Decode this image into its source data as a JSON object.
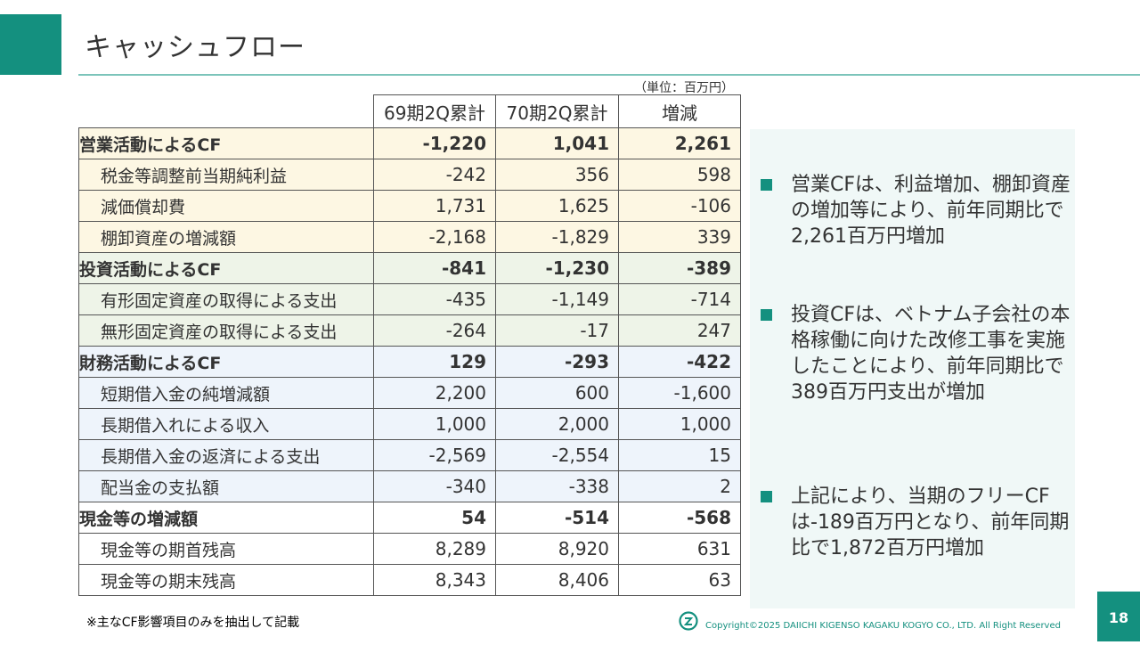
{
  "title": "キャッシュフロー",
  "unit_note": "（単位：百万円）",
  "table": {
    "headers": [
      "69期2Q累計",
      "70期2Q累計",
      "増減"
    ],
    "rows": [
      {
        "label": "営業活動によるCF",
        "kind": "section",
        "group": "op",
        "values": [
          "-1,220",
          "1,041",
          "2,261"
        ]
      },
      {
        "label": "税金等調整前当期純利益",
        "kind": "item",
        "group": "op",
        "values": [
          "-242",
          "356",
          "598"
        ]
      },
      {
        "label": "減価償却費",
        "kind": "item",
        "group": "op",
        "values": [
          "1,731",
          "1,625",
          "-106"
        ]
      },
      {
        "label": "棚卸資産の増減額",
        "kind": "item",
        "group": "op",
        "values": [
          "-2,168",
          "-1,829",
          "339"
        ]
      },
      {
        "label": "投資活動によるCF",
        "kind": "section",
        "group": "inv",
        "values": [
          "-841",
          "-1,230",
          "-389"
        ]
      },
      {
        "label": "有形固定資産の取得による支出",
        "kind": "item",
        "group": "inv",
        "values": [
          "-435",
          "-1,149",
          "-714"
        ]
      },
      {
        "label": "無形固定資産の取得による支出",
        "kind": "item",
        "group": "inv",
        "values": [
          "-264",
          "-17",
          "247"
        ]
      },
      {
        "label": "財務活動によるCF",
        "kind": "section",
        "group": "fin",
        "values": [
          "129",
          "-293",
          "-422"
        ]
      },
      {
        "label": "短期借入金の純増減額",
        "kind": "item",
        "group": "fin",
        "values": [
          "2,200",
          "600",
          "-1,600"
        ]
      },
      {
        "label": "長期借入れによる収入",
        "kind": "item",
        "group": "fin",
        "values": [
          "1,000",
          "2,000",
          "1,000"
        ]
      },
      {
        "label": "長期借入金の返済による支出",
        "kind": "item",
        "group": "fin",
        "values": [
          "-2,569",
          "-2,554",
          "15"
        ]
      },
      {
        "label": "配当金の支払額",
        "kind": "item",
        "group": "fin",
        "values": [
          "-340",
          "-338",
          "2"
        ]
      },
      {
        "label": "現金等の増減額",
        "kind": "section",
        "group": "cash",
        "values": [
          "54",
          "-514",
          "-568"
        ]
      },
      {
        "label": "現金等の期首残高",
        "kind": "item",
        "group": "cash",
        "values": [
          "8,289",
          "8,920",
          "631"
        ]
      },
      {
        "label": "現金等の期末残高",
        "kind": "item",
        "group": "cash",
        "values": [
          "8,343",
          "8,406",
          "63"
        ]
      }
    ]
  },
  "bullets": [
    "営業CFは、利益増加、棚卸資産の増加等により、前年同期比で2,261百万円増加",
    "投資CFは、ベトナム子会社の本格稼働に向けた改修工事を実施したことにより、前年同期比で389百万円支出が増加",
    "上記により、当期のフリーCFは-189百万円となり、前年同期比で1,872百万円増加"
  ],
  "footnote": "※主なCF影響項目のみを抽出して記載",
  "copyright": "Copyright©2025 DAIICHI KIGENSO KAGAKU KOGYO CO., LTD. All Right Reserved",
  "page_number": "18",
  "colors": {
    "accent": "#14907f",
    "operating_bg": "#fdf7e3",
    "investing_bg": "#eef4e8",
    "financing_bg": "#eef4fb",
    "panel_bg": "#f0f8f7"
  }
}
